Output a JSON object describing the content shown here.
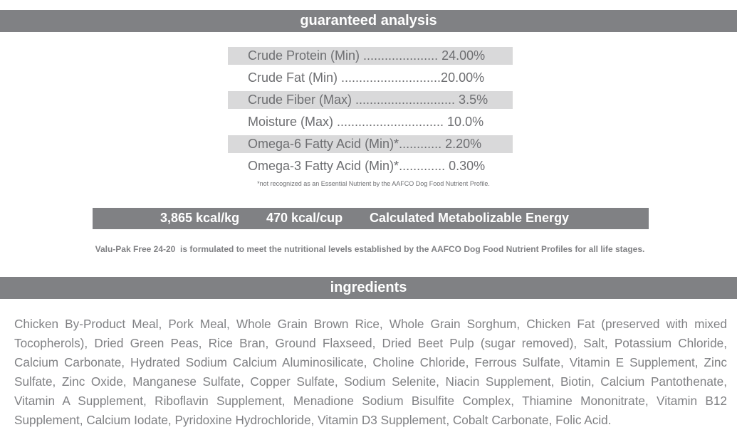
{
  "guaranteed_analysis": {
    "heading": "guaranteed analysis",
    "rows": [
      {
        "text": "Crude Protein (Min) ..................... 24.00%",
        "shaded": true
      },
      {
        "text": "Crude Fat (Min) ............................20.00%",
        "shaded": false
      },
      {
        "text": "Crude Fiber (Max) ............................ 3.5%",
        "shaded": true
      },
      {
        "text": "Moisture (Max) ..............................  10.0%",
        "shaded": false
      },
      {
        "text": "Omega-6 Fatty Acid (Min)*............  2.20%",
        "shaded": true
      },
      {
        "text": "Omega-3 Fatty Acid (Min)*.............  0.30%",
        "shaded": false
      }
    ],
    "footnote": "*not recognized as an Essential Nutrient by the AAFCO Dog Food Nutrient Profile."
  },
  "energy": {
    "kcal_per_kg": "3,865 kcal/kg",
    "kcal_per_cup": "470 kcal/cup",
    "label": "Calculated Metabolizable Energy"
  },
  "formulated_statement": "Valu-Pak Free 24-20  is formulated to meet the nutritional levels established by the AAFCO Dog Food Nutrient Profiles for all life stages.",
  "ingredients": {
    "heading": "ingredients",
    "text": "Chicken By-Product Meal, Pork Meal, Whole Grain Brown Rice, Whole Grain Sorghum, Chicken Fat (preserved with mixed Tocopherols), Dried Green Peas, Rice Bran, Ground Flaxseed, Dried Beet Pulp (sugar removed), Salt, Potassium Chloride, Calcium Carbonate, Hydrated Sodium Calcium Aluminosilicate, Choline Chloride, Ferrous Sulfate, Vitamin E Supplement, Zinc Sulfate, Zinc Oxide, Manganese Sulfate, Copper Sulfate, Sodium Selenite, Niacin Supplement, Biotin, Calcium Pantothenate, Vitamin A Supplement, Riboflavin Supplement, Menadione Sodium Bisulfite Complex, Thiamine Mononitrate, Vitamin B12 Supplement, Calcium Iodate, Pyridoxine Hydrochloride, Vitamin D3 Supplement, Cobalt Carbonate, Folic Acid."
  }
}
